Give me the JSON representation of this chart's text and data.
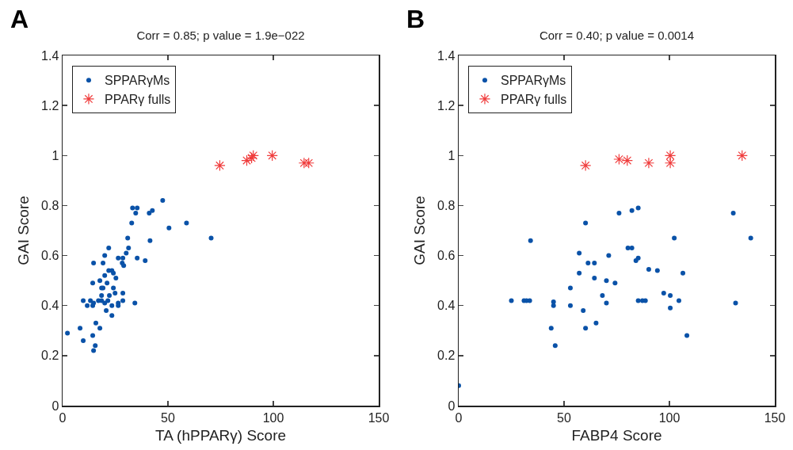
{
  "chart_data": [
    {
      "type": "scatter",
      "title": "Corr = 0.85; p value = 1.9e−022",
      "xlabel": "TA (hPPARγ) Score",
      "ylabel": "GAI Score",
      "annotations": [
        "A"
      ],
      "xlim": [
        0,
        150
      ],
      "ylim": [
        0,
        1.4
      ],
      "xticks": [
        0,
        50,
        100,
        150
      ],
      "yticks": [
        0,
        0.2,
        0.4,
        0.6,
        0.8,
        1,
        1.2,
        1.4
      ],
      "grid": false,
      "legend": "top left",
      "series": [
        {
          "name": "SPPARγMs",
          "color": "#0a52a8",
          "marker": "circle",
          "x": [
            2.3,
            8.3,
            9.8,
            14.3,
            15.5,
            14.7,
            15.8,
            17.7,
            9.8,
            11.7,
            13.2,
            14.3,
            14.7,
            17,
            18.5,
            20,
            20.7,
            21.5,
            22.2,
            23.4,
            23.4,
            24.9,
            24.1,
            26.4,
            26.4,
            28.6,
            28.6,
            34.3,
            18.5,
            18.5,
            19.2,
            21.1,
            14.3,
            17.7,
            25.3,
            20,
            21.9,
            23.4,
            24.1,
            14.7,
            19.2,
            20,
            21.9,
            26.4,
            28.3,
            29,
            28.6,
            30.2,
            31.3,
            30.9,
            35.4,
            39.2,
            41.5,
            32.8,
            33.2,
            35.4,
            34.7,
            41.1,
            42.6,
            47.5,
            50.5,
            58.8,
            70.5
          ],
          "values": [
            0.29,
            0.31,
            0.26,
            0.28,
            0.24,
            0.22,
            0.33,
            0.31,
            0.42,
            0.4,
            0.42,
            0.4,
            0.41,
            0.42,
            0.42,
            0.41,
            0.38,
            0.42,
            0.44,
            0.4,
            0.36,
            0.45,
            0.47,
            0.41,
            0.4,
            0.42,
            0.45,
            0.41,
            0.44,
            0.47,
            0.47,
            0.49,
            0.49,
            0.5,
            0.51,
            0.52,
            0.54,
            0.54,
            0.53,
            0.57,
            0.57,
            0.6,
            0.63,
            0.59,
            0.57,
            0.56,
            0.59,
            0.61,
            0.63,
            0.67,
            0.59,
            0.58,
            0.66,
            0.73,
            0.79,
            0.79,
            0.77,
            0.77,
            0.78,
            0.82,
            0.71,
            0.73,
            0.67
          ]
        },
        {
          "name": "PPARγ fulls",
          "color": "#f03c3c",
          "marker": "cross",
          "x": [
            74.6,
            87.4,
            89.7,
            90.5,
            99.5,
            114.6,
            116.8
          ],
          "values": [
            0.96,
            0.98,
            0.99,
            1,
            1,
            0.97,
            0.97
          ]
        }
      ]
    },
    {
      "type": "scatter",
      "title": "Corr = 0.40; p value = 0.0014",
      "xlabel": "FABP4 Score",
      "ylabel": "GAI Score",
      "annotations": [
        "B"
      ],
      "xlim": [
        0,
        150
      ],
      "ylim": [
        0,
        1.4
      ],
      "xticks": [
        0,
        50,
        100,
        150
      ],
      "yticks": [
        0,
        0.2,
        0.4,
        0.6,
        0.8,
        1,
        1.2,
        1.4
      ],
      "grid": false,
      "legend": "top left",
      "series": [
        {
          "name": "SPPARγMs",
          "color": "#0a52a8",
          "marker": "circle",
          "x": [
            0,
            25,
            31,
            32.2,
            33.7,
            34.1,
            45,
            45,
            43.9,
            45.8,
            53,
            53,
            57.2,
            57.2,
            59.1,
            60.2,
            60.2,
            61.4,
            64.4,
            64.4,
            65.2,
            68.2,
            70.1,
            70.1,
            71.2,
            74.2,
            76.1,
            80.3,
            82.2,
            82.2,
            85.2,
            84.1,
            85.2,
            85.2,
            87.2,
            88.6,
            90.2,
            94.3,
            97.3,
            100.4,
            100.4,
            102.3,
            104.5,
            106.4,
            108.3,
            130.3,
            131.4,
            138.6
          ],
          "values": [
            0.08,
            0.42,
            0.42,
            0.42,
            0.42,
            0.66,
            0.415,
            0.4,
            0.31,
            0.24,
            0.47,
            0.4,
            0.61,
            0.53,
            0.38,
            0.31,
            0.73,
            0.57,
            0.57,
            0.51,
            0.33,
            0.44,
            0.5,
            0.41,
            0.6,
            0.49,
            0.77,
            0.63,
            0.63,
            0.78,
            0.79,
            0.58,
            0.59,
            0.42,
            0.42,
            0.42,
            0.545,
            0.54,
            0.45,
            0.44,
            0.39,
            0.67,
            0.42,
            0.53,
            0.28,
            0.77,
            0.41,
            0.67
          ]
        },
        {
          "name": "PPARγ fulls",
          "color": "#f03c3c",
          "marker": "cross",
          "x": [
            60.2,
            76.1,
            80,
            90.2,
            100.4,
            100.4,
            134.5
          ],
          "values": [
            0.96,
            0.985,
            0.98,
            0.97,
            1,
            0.97,
            1
          ]
        }
      ]
    }
  ]
}
